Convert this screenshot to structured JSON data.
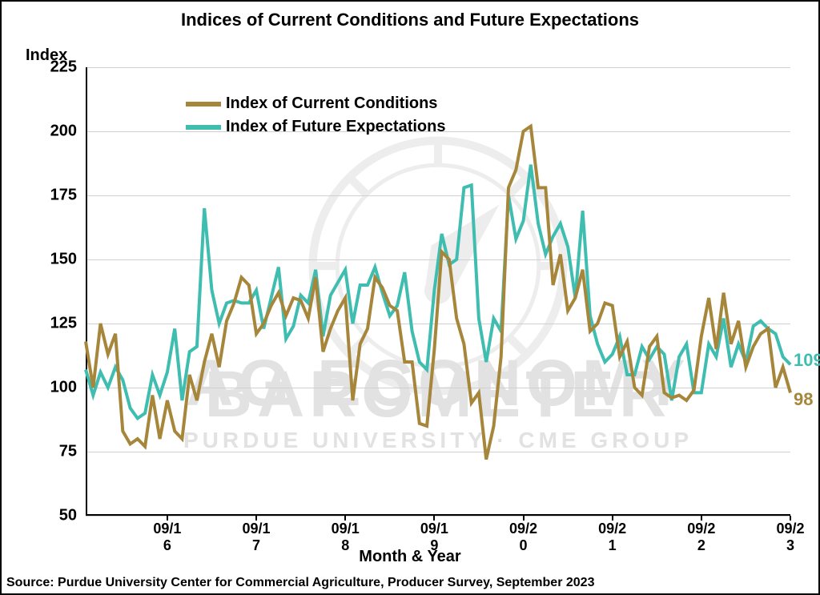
{
  "chart": {
    "type": "line",
    "title": "Indices of Current Conditions and Future Expectations",
    "title_fontsize": 22,
    "y_axis_title": "Index",
    "y_axis_title_fontsize": 20,
    "x_axis_title": "Month & Year",
    "x_axis_title_fontsize": 20,
    "source": "Source: Purdue University Center for Commercial Agriculture, Producer Survey, September 2023",
    "source_fontsize": 16,
    "background_color": "#ffffff",
    "grid_color": "#d0d0d0",
    "axis_color": "#000000",
    "line_width": 4,
    "ylim": [
      50,
      225
    ],
    "yticks": [
      50,
      75,
      100,
      125,
      150,
      175,
      200,
      225
    ],
    "ytick_fontsize": 20,
    "x_major_ticks": [
      11,
      23,
      35,
      47,
      59,
      71,
      83,
      95
    ],
    "x_tick_labels": [
      "09/16",
      "09/17",
      "09/18",
      "09/19",
      "09/20",
      "09/21",
      "09/22",
      "09/23"
    ],
    "xtick_fontsize": 18,
    "n_points": 96,
    "legend": {
      "fontsize": 20,
      "items": [
        {
          "label": "Index of Current Conditions",
          "color": "#a6863a"
        },
        {
          "label": "Index of Future Expectations",
          "color": "#3fbdb0"
        }
      ]
    },
    "watermark": {
      "line1": "AG ECONOMY",
      "line2": "BAROMETER",
      "sub": "PURDUE UNIVERSITY  ·  CME GROUP",
      "color": "#e2e2e2"
    },
    "series": {
      "current_conditions": {
        "color": "#a6863a",
        "endpoint_label": "98",
        "endpoint_color": "#a6863a",
        "values": [
          118,
          100,
          125,
          113,
          121,
          83,
          78,
          80,
          77,
          97,
          80,
          95,
          83,
          80,
          105,
          95,
          110,
          121,
          108,
          126,
          133,
          143,
          140,
          121,
          125,
          132,
          137,
          128,
          135,
          134,
          127,
          143,
          114,
          123,
          130,
          135,
          95,
          117,
          123,
          143,
          139,
          132,
          130,
          110,
          110,
          86,
          85,
          115,
          153,
          150,
          127,
          117,
          94,
          98,
          72,
          85,
          112,
          178,
          185,
          200,
          202,
          178,
          178,
          140,
          152,
          130,
          135,
          146,
          122,
          125,
          133,
          132,
          112,
          118,
          100,
          97,
          116,
          120,
          98,
          96,
          97,
          95,
          99,
          120,
          135,
          115,
          137,
          117,
          126,
          108,
          116,
          121,
          123,
          100,
          108,
          98
        ]
      },
      "future_expectations": {
        "color": "#3fbdb0",
        "endpoint_label": "109",
        "endpoint_color": "#3fbdb0",
        "values": [
          107,
          97,
          106,
          100,
          108,
          103,
          92,
          88,
          90,
          105,
          97,
          106,
          123,
          95,
          114,
          116,
          170,
          138,
          125,
          133,
          134,
          133,
          133,
          138,
          123,
          135,
          147,
          119,
          124,
          136,
          133,
          146,
          120,
          136,
          141,
          146,
          125,
          140,
          140,
          147,
          137,
          128,
          132,
          145,
          122,
          110,
          107,
          138,
          160,
          148,
          150,
          178,
          179,
          127,
          110,
          127,
          122,
          175,
          158,
          165,
          187,
          164,
          152,
          159,
          164,
          155,
          135,
          169,
          128,
          117,
          110,
          113,
          120,
          105,
          105,
          116,
          111,
          116,
          113,
          95,
          112,
          117,
          98,
          98,
          117,
          112,
          127,
          108,
          117,
          110,
          124,
          126,
          123,
          121,
          112,
          109
        ]
      }
    }
  }
}
